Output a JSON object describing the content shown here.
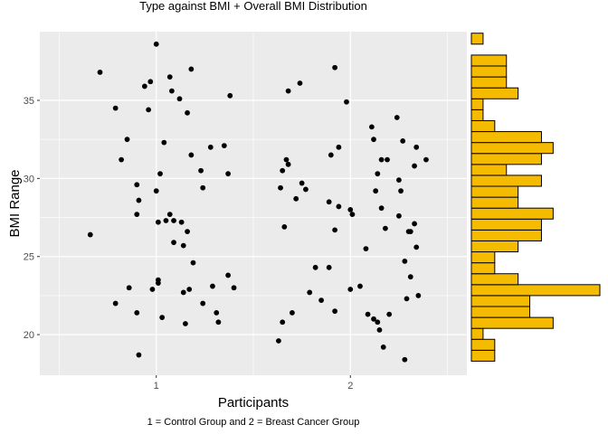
{
  "chart_data": [
    {
      "type": "scatter",
      "title": "Type against BMI + Overall BMI Distribution",
      "xlabel": "Participants",
      "subtitle": "1 = Control Group and 2 = Breast Cancer Group",
      "ylabel": "BMI Range",
      "xlim": [
        0.4,
        2.6
      ],
      "ylim": [
        17.4,
        39.4
      ],
      "x_ticks": [
        1,
        2
      ],
      "x_tick_labels": [
        "1",
        "2"
      ],
      "y_ticks": [
        20,
        25,
        30,
        35
      ],
      "y_tick_labels": [
        "20",
        "25",
        "30",
        "35"
      ],
      "grid": true,
      "point_color": "#000000",
      "panel_color": "#EBEBEB",
      "points": [
        [
          0.66,
          26.4
        ],
        [
          0.71,
          36.8
        ],
        [
          0.79,
          34.5
        ],
        [
          0.79,
          22.0
        ],
        [
          0.82,
          31.2
        ],
        [
          0.85,
          32.5
        ],
        [
          0.86,
          23.0
        ],
        [
          0.9,
          29.6
        ],
        [
          0.9,
          27.7
        ],
        [
          0.9,
          21.4
        ],
        [
          0.91,
          28.6
        ],
        [
          0.91,
          18.7
        ],
        [
          0.94,
          35.9
        ],
        [
          0.96,
          34.4
        ],
        [
          0.97,
          36.2
        ],
        [
          0.98,
          22.9
        ],
        [
          1.0,
          38.6
        ],
        [
          1.0,
          29.2
        ],
        [
          1.01,
          23.5
        ],
        [
          1.01,
          23.3
        ],
        [
          1.01,
          27.2
        ],
        [
          1.02,
          30.3
        ],
        [
          1.03,
          21.1
        ],
        [
          1.04,
          32.3
        ],
        [
          1.05,
          27.3
        ],
        [
          1.07,
          36.5
        ],
        [
          1.07,
          27.7
        ],
        [
          1.08,
          35.6
        ],
        [
          1.09,
          27.3
        ],
        [
          1.09,
          25.9
        ],
        [
          1.12,
          35.1
        ],
        [
          1.13,
          27.2
        ],
        [
          1.14,
          25.7
        ],
        [
          1.14,
          22.7
        ],
        [
          1.15,
          20.7
        ],
        [
          1.16,
          34.2
        ],
        [
          1.16,
          26.6
        ],
        [
          1.17,
          22.9
        ],
        [
          1.18,
          37.0
        ],
        [
          1.18,
          31.5
        ],
        [
          1.19,
          24.6
        ],
        [
          1.23,
          30.5
        ],
        [
          1.24,
          22.0
        ],
        [
          1.24,
          29.4
        ],
        [
          1.28,
          32.0
        ],
        [
          1.29,
          23.1
        ],
        [
          1.31,
          21.4
        ],
        [
          1.32,
          20.8
        ],
        [
          1.35,
          32.1
        ],
        [
          1.37,
          30.3
        ],
        [
          1.37,
          23.8
        ],
        [
          1.38,
          35.3
        ],
        [
          1.4,
          23.0
        ],
        [
          1.63,
          19.6
        ],
        [
          1.64,
          29.4
        ],
        [
          1.65,
          30.5
        ],
        [
          1.65,
          20.8
        ],
        [
          1.66,
          26.9
        ],
        [
          1.67,
          31.2
        ],
        [
          1.68,
          35.6
        ],
        [
          1.68,
          30.9
        ],
        [
          1.7,
          21.4
        ],
        [
          1.72,
          28.7
        ],
        [
          1.74,
          36.1
        ],
        [
          1.75,
          29.7
        ],
        [
          1.77,
          29.3
        ],
        [
          1.79,
          22.7
        ],
        [
          1.82,
          24.3
        ],
        [
          1.85,
          22.2
        ],
        [
          1.89,
          28.5
        ],
        [
          1.89,
          24.3
        ],
        [
          1.9,
          31.5
        ],
        [
          1.92,
          37.1
        ],
        [
          1.92,
          26.7
        ],
        [
          1.92,
          21.5
        ],
        [
          1.94,
          32.0
        ],
        [
          1.94,
          28.2
        ],
        [
          1.98,
          34.9
        ],
        [
          2.0,
          28.0
        ],
        [
          2.0,
          22.9
        ],
        [
          2.01,
          27.7
        ],
        [
          2.05,
          23.1
        ],
        [
          2.08,
          25.5
        ],
        [
          2.09,
          21.3
        ],
        [
          2.11,
          33.3
        ],
        [
          2.12,
          32.5
        ],
        [
          2.12,
          21.0
        ],
        [
          2.13,
          29.2
        ],
        [
          2.14,
          30.3
        ],
        [
          2.14,
          20.8
        ],
        [
          2.15,
          20.3
        ],
        [
          2.16,
          28.1
        ],
        [
          2.16,
          31.2
        ],
        [
          2.17,
          19.2
        ],
        [
          2.18,
          26.8
        ],
        [
          2.19,
          31.2
        ],
        [
          2.2,
          21.3
        ],
        [
          2.24,
          33.9
        ],
        [
          2.25,
          29.9
        ],
        [
          2.25,
          27.6
        ],
        [
          2.26,
          29.2
        ],
        [
          2.27,
          32.4
        ],
        [
          2.28,
          18.4
        ],
        [
          2.28,
          24.7
        ],
        [
          2.29,
          22.3
        ],
        [
          2.3,
          26.6
        ],
        [
          2.31,
          26.6
        ],
        [
          2.31,
          23.7
        ],
        [
          2.33,
          30.8
        ],
        [
          2.33,
          27.1
        ],
        [
          2.34,
          25.6
        ],
        [
          2.34,
          32.0
        ],
        [
          2.35,
          22.5
        ],
        [
          2.39,
          31.2
        ]
      ]
    },
    {
      "type": "histogram",
      "orientation": "horizontal",
      "fill_color": "#F5BB00",
      "outline_color": "#000000",
      "ylim": [
        17.4,
        39.4
      ],
      "bins": [
        {
          "low": 18.3,
          "high": 19.0,
          "count": 2
        },
        {
          "low": 19.0,
          "high": 19.7,
          "count": 2
        },
        {
          "low": 19.7,
          "high": 20.4,
          "count": 1
        },
        {
          "low": 20.4,
          "high": 21.1,
          "count": 7
        },
        {
          "low": 21.1,
          "high": 21.8,
          "count": 5
        },
        {
          "low": 21.8,
          "high": 22.5,
          "count": 5
        },
        {
          "low": 22.5,
          "high": 23.2,
          "count": 11
        },
        {
          "low": 23.2,
          "high": 23.9,
          "count": 4
        },
        {
          "low": 23.9,
          "high": 24.6,
          "count": 2
        },
        {
          "low": 24.6,
          "high": 25.3,
          "count": 2
        },
        {
          "low": 25.3,
          "high": 26.0,
          "count": 4
        },
        {
          "low": 26.0,
          "high": 26.7,
          "count": 6
        },
        {
          "low": 26.7,
          "high": 27.4,
          "count": 6
        },
        {
          "low": 27.4,
          "high": 28.1,
          "count": 7
        },
        {
          "low": 28.1,
          "high": 28.8,
          "count": 4
        },
        {
          "low": 28.8,
          "high": 29.5,
          "count": 4
        },
        {
          "low": 29.5,
          "high": 30.2,
          "count": 6
        },
        {
          "low": 30.2,
          "high": 30.9,
          "count": 3
        },
        {
          "low": 30.9,
          "high": 31.6,
          "count": 6
        },
        {
          "low": 31.6,
          "high": 32.3,
          "count": 7
        },
        {
          "low": 32.3,
          "high": 33.0,
          "count": 6
        },
        {
          "low": 33.0,
          "high": 33.7,
          "count": 2
        },
        {
          "low": 33.7,
          "high": 34.4,
          "count": 1
        },
        {
          "low": 34.4,
          "high": 35.1,
          "count": 1
        },
        {
          "low": 35.1,
          "high": 35.8,
          "count": 4
        },
        {
          "low": 35.8,
          "high": 36.5,
          "count": 3
        },
        {
          "low": 36.5,
          "high": 37.2,
          "count": 3
        },
        {
          "low": 37.2,
          "high": 37.9,
          "count": 3
        },
        {
          "low": 37.9,
          "high": 38.6,
          "count": 0
        },
        {
          "low": 38.6,
          "high": 39.3,
          "count": 1
        }
      ]
    }
  ]
}
